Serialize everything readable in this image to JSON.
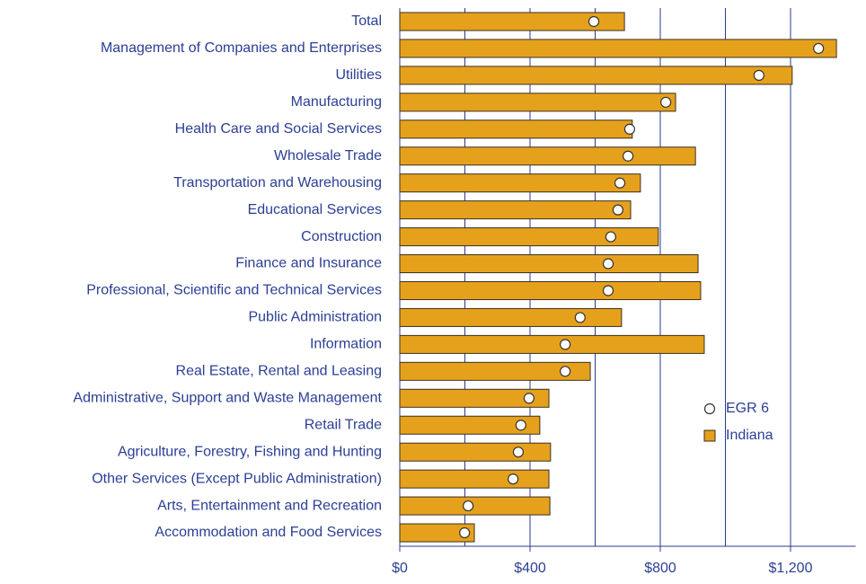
{
  "chart_data": {
    "type": "bar_dot",
    "categories": [
      "Total",
      "Management of Companies and Enterprises",
      "Utilities",
      "Manufacturing",
      "Health Care and Social Services",
      "Wholesale Trade",
      "Transportation and Warehousing",
      "Educational Services",
      "Construction",
      "Finance and Insurance",
      "Professional, Scientific and Technical Services",
      "Public Administration",
      "Information",
      "Real Estate, Rental and Leasing",
      "Administrative, Support and Waste Management",
      "Retail Trade",
      "Agriculture, Forestry, Fishing and Hunting",
      "Other Services (Except Public Administration)",
      "Arts, Entertainment and Recreation",
      "Accommodation and Food Services"
    ],
    "series": [
      {
        "name": "Indiana",
        "color": "#e6a11c",
        "values": [
          690,
          1341,
          1205,
          847,
          714,
          908,
          739,
          709,
          794,
          916,
          924,
          681,
          935,
          585,
          458,
          430,
          463,
          458,
          461,
          229
        ]
      },
      {
        "name": "EGR 6",
        "color": "#ffffff",
        "values": [
          596,
          1286,
          1103,
          817,
          706,
          701,
          676,
          670,
          648,
          640,
          640,
          554,
          508,
          508,
          397,
          372,
          364,
          348,
          210,
          199
        ]
      }
    ],
    "xlim": [
      0,
      1400
    ],
    "xticks": [
      {
        "value": 0,
        "label": "$0"
      },
      {
        "value": 400,
        "label": "$400"
      },
      {
        "value": 800,
        "label": "$800"
      },
      {
        "value": 1200,
        "label": "$1,200"
      }
    ],
    "x_gridlines": [
      200,
      400,
      600,
      800,
      1000,
      1200
    ],
    "grid": true,
    "legend": "lower right"
  }
}
